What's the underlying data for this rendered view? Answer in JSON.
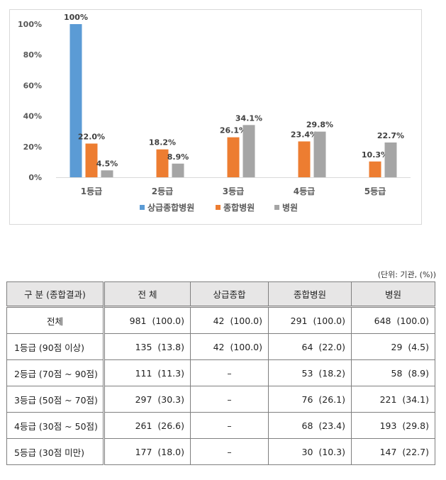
{
  "chart_data": {
    "type": "bar",
    "categories": [
      "1등급",
      "2등급",
      "3등급",
      "4등급",
      "5등급"
    ],
    "series": [
      {
        "name": "상급종합병원",
        "color": "#5b9bd5",
        "values": [
          100,
          null,
          null,
          null,
          null
        ],
        "labels": [
          "100%",
          "",
          "",
          "",
          ""
        ]
      },
      {
        "name": "종합병원",
        "color": "#ed7d31",
        "values": [
          22.0,
          18.2,
          26.1,
          23.4,
          10.3
        ],
        "labels": [
          "22.0%",
          "18.2%",
          "26.1%",
          "23.4%",
          "10.3%"
        ]
      },
      {
        "name": "병원",
        "color": "#a5a5a5",
        "values": [
          4.5,
          8.9,
          34.1,
          29.8,
          22.7
        ],
        "labels": [
          "4.5%",
          "8.9%",
          "34.1%",
          "29.8%",
          "22.7%"
        ]
      }
    ],
    "yticks": [
      "0%",
      "20%",
      "40%",
      "60%",
      "80%",
      "100%"
    ],
    "ylim": [
      0,
      100
    ],
    "grid": false,
    "legend": "bottom"
  },
  "table": {
    "unit_note": "(단위: 기관, (%))",
    "headers": [
      "구  분 (종합결과)",
      "전  체",
      "상급종합",
      "종합병원",
      "병원"
    ],
    "rows": [
      [
        "전체",
        "981  (100.0)",
        "42  (100.0)",
        "291  (100.0)",
        "648  (100.0)"
      ],
      [
        "1등급 (90점 이상)",
        "135  (13.8)",
        "42  (100.0)",
        "64  (22.0)",
        "29  (4.5)"
      ],
      [
        "2등급 (70점 ~ 90점)",
        "111  (11.3)",
        "–",
        "53  (18.2)",
        "58  (8.9)"
      ],
      [
        "3등급 (50점 ~ 70점)",
        "297  (30.3)",
        "–",
        "76  (26.1)",
        "221  (34.1)"
      ],
      [
        "4등급 (30점 ~ 50점)",
        "261  (26.6)",
        "–",
        "68  (23.4)",
        "193  (29.8)"
      ],
      [
        "5등급 (30점 미만)",
        "177  (18.0)",
        "–",
        "30  (10.3)",
        "147  (22.7)"
      ]
    ]
  }
}
